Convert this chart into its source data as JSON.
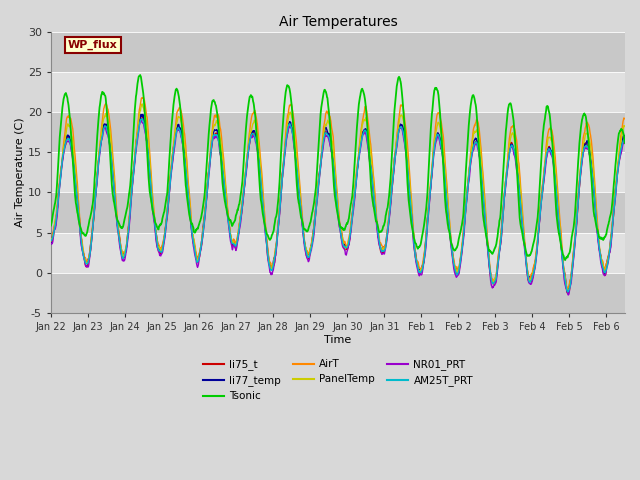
{
  "title": "Air Temperatures",
  "xlabel": "Time",
  "ylabel": "Air Temperature (C)",
  "ylim": [
    -5,
    30
  ],
  "background_color": "#d8d8d8",
  "band_color": "#e8e8e8",
  "series_colors": {
    "li75_t": "#cc0000",
    "li77_temp": "#000099",
    "Tsonic": "#00cc00",
    "AirT": "#ff8800",
    "PanelTemp": "#cccc00",
    "NR01_PRT": "#9900cc",
    "AM25T_PRT": "#00bbcc"
  },
  "legend_label": "WP_flux",
  "legend_text_color": "#880000",
  "legend_bg_color": "#ffffcc",
  "legend_edge_color": "#880000",
  "xtick_labels": [
    "Jan 22",
    "Jan 23",
    "Jan 24",
    "Jan 25",
    "Jan 26",
    "Jan 27",
    "Jan 28",
    "Jan 29",
    "Jan 30",
    "Jan 31",
    "Feb 1",
    "Feb 2",
    "Feb 3",
    "Feb 4",
    "Feb 5",
    "Feb 6"
  ],
  "yticks": [
    -5,
    0,
    5,
    10,
    15,
    20,
    25,
    30
  ],
  "n_points": 1500,
  "seed": 42
}
